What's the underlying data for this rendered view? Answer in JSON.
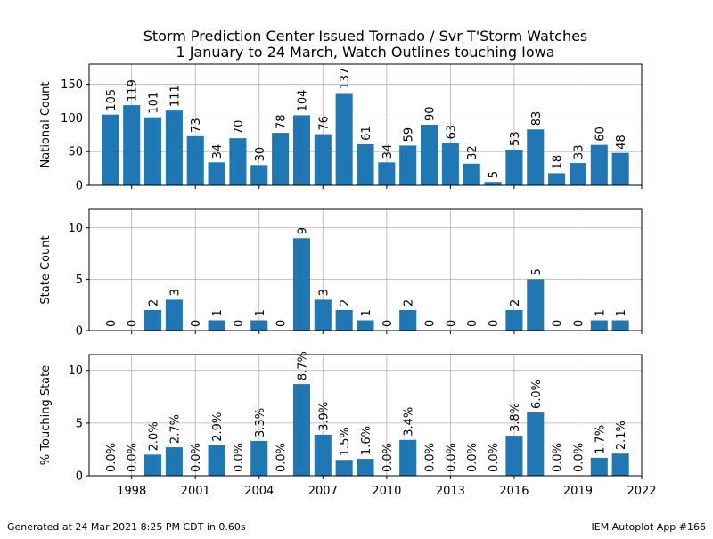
{
  "title_line1": "Storm Prediction Center Issued Tornado / Svr T'Storm Watches",
  "title_line2": "1 January to 24 March, Watch Outlines touching Iowa",
  "footer_left": "Generated at 24 Mar 2021 8:25 PM CDT in 0.60s",
  "footer_right": "IEM Autoplot App #166",
  "bar_color": "#1f77b4",
  "chart_data": [
    {
      "type": "bar",
      "ylabel": "National Count",
      "ylim": [
        0,
        180
      ],
      "yticks": [
        0,
        50,
        100,
        150
      ],
      "xlim": [
        1996,
        2022
      ],
      "xticks": [
        1998,
        2001,
        2004,
        2007,
        2010,
        2013,
        2016,
        2019,
        2022
      ],
      "show_xtick_labels": false,
      "grid": true,
      "x": [
        1997,
        1998,
        1999,
        2000,
        2001,
        2002,
        2003,
        2004,
        2005,
        2006,
        2007,
        2008,
        2009,
        2010,
        2011,
        2012,
        2013,
        2014,
        2015,
        2016,
        2017,
        2018,
        2019,
        2020,
        2021
      ],
      "values": [
        105,
        119,
        101,
        111,
        73,
        34,
        70,
        30,
        78,
        104,
        76,
        137,
        61,
        34,
        59,
        90,
        63,
        32,
        5,
        53,
        83,
        18,
        33,
        60,
        48
      ],
      "labels": [
        "105",
        "119",
        "101",
        "111",
        "73",
        "34",
        "70",
        "30",
        "78",
        "104",
        "76",
        "137",
        "61",
        "34",
        "59",
        "90",
        "63",
        "32",
        "5",
        "53",
        "83",
        "18",
        "33",
        "60",
        "48"
      ]
    },
    {
      "type": "bar",
      "ylabel": "State Count",
      "ylim": [
        0,
        11.8
      ],
      "yticks": [
        0,
        5,
        10
      ],
      "xlim": [
        1996,
        2022
      ],
      "xticks": [
        1998,
        2001,
        2004,
        2007,
        2010,
        2013,
        2016,
        2019,
        2022
      ],
      "show_xtick_labels": false,
      "grid": true,
      "x": [
        1997,
        1998,
        1999,
        2000,
        2001,
        2002,
        2003,
        2004,
        2005,
        2006,
        2007,
        2008,
        2009,
        2010,
        2011,
        2012,
        2013,
        2014,
        2015,
        2016,
        2017,
        2018,
        2019,
        2020,
        2021
      ],
      "values": [
        0,
        0,
        2,
        3,
        0,
        1,
        0,
        1,
        0,
        9,
        3,
        2,
        1,
        0,
        2,
        0,
        0,
        0,
        0,
        2,
        5,
        0,
        0,
        1,
        1
      ],
      "labels": [
        "0",
        "0",
        "2",
        "3",
        "0",
        "1",
        "0",
        "1",
        "0",
        "9",
        "3",
        "2",
        "1",
        "0",
        "2",
        "0",
        "0",
        "0",
        "0",
        "2",
        "5",
        "0",
        "0",
        "1",
        "1"
      ]
    },
    {
      "type": "bar",
      "ylabel": "% Touching State",
      "ylim": [
        0,
        11.5
      ],
      "yticks": [
        0,
        5,
        10
      ],
      "xlim": [
        1996,
        2022
      ],
      "xticks": [
        1998,
        2001,
        2004,
        2007,
        2010,
        2013,
        2016,
        2019,
        2022
      ],
      "show_xtick_labels": true,
      "grid": true,
      "x": [
        1997,
        1998,
        1999,
        2000,
        2001,
        2002,
        2003,
        2004,
        2005,
        2006,
        2007,
        2008,
        2009,
        2010,
        2011,
        2012,
        2013,
        2014,
        2015,
        2016,
        2017,
        2018,
        2019,
        2020,
        2021
      ],
      "values": [
        0.0,
        0.0,
        2.0,
        2.7,
        0.0,
        2.9,
        0.0,
        3.3,
        0.0,
        8.7,
        3.9,
        1.5,
        1.6,
        0.0,
        3.4,
        0.0,
        0.0,
        0.0,
        0.0,
        3.8,
        6.0,
        0.0,
        0.0,
        1.7,
        2.1
      ],
      "labels": [
        "0.0%",
        "0.0%",
        "2.0%",
        "2.7%",
        "0.0%",
        "2.9%",
        "0.0%",
        "3.3%",
        "0.0%",
        "8.7%",
        "3.9%",
        "1.5%",
        "1.6%",
        "0.0%",
        "3.4%",
        "0.0%",
        "0.0%",
        "0.0%",
        "0.0%",
        "3.8%",
        "6.0%",
        "0.0%",
        "0.0%",
        "1.7%",
        "2.1%"
      ]
    }
  ]
}
